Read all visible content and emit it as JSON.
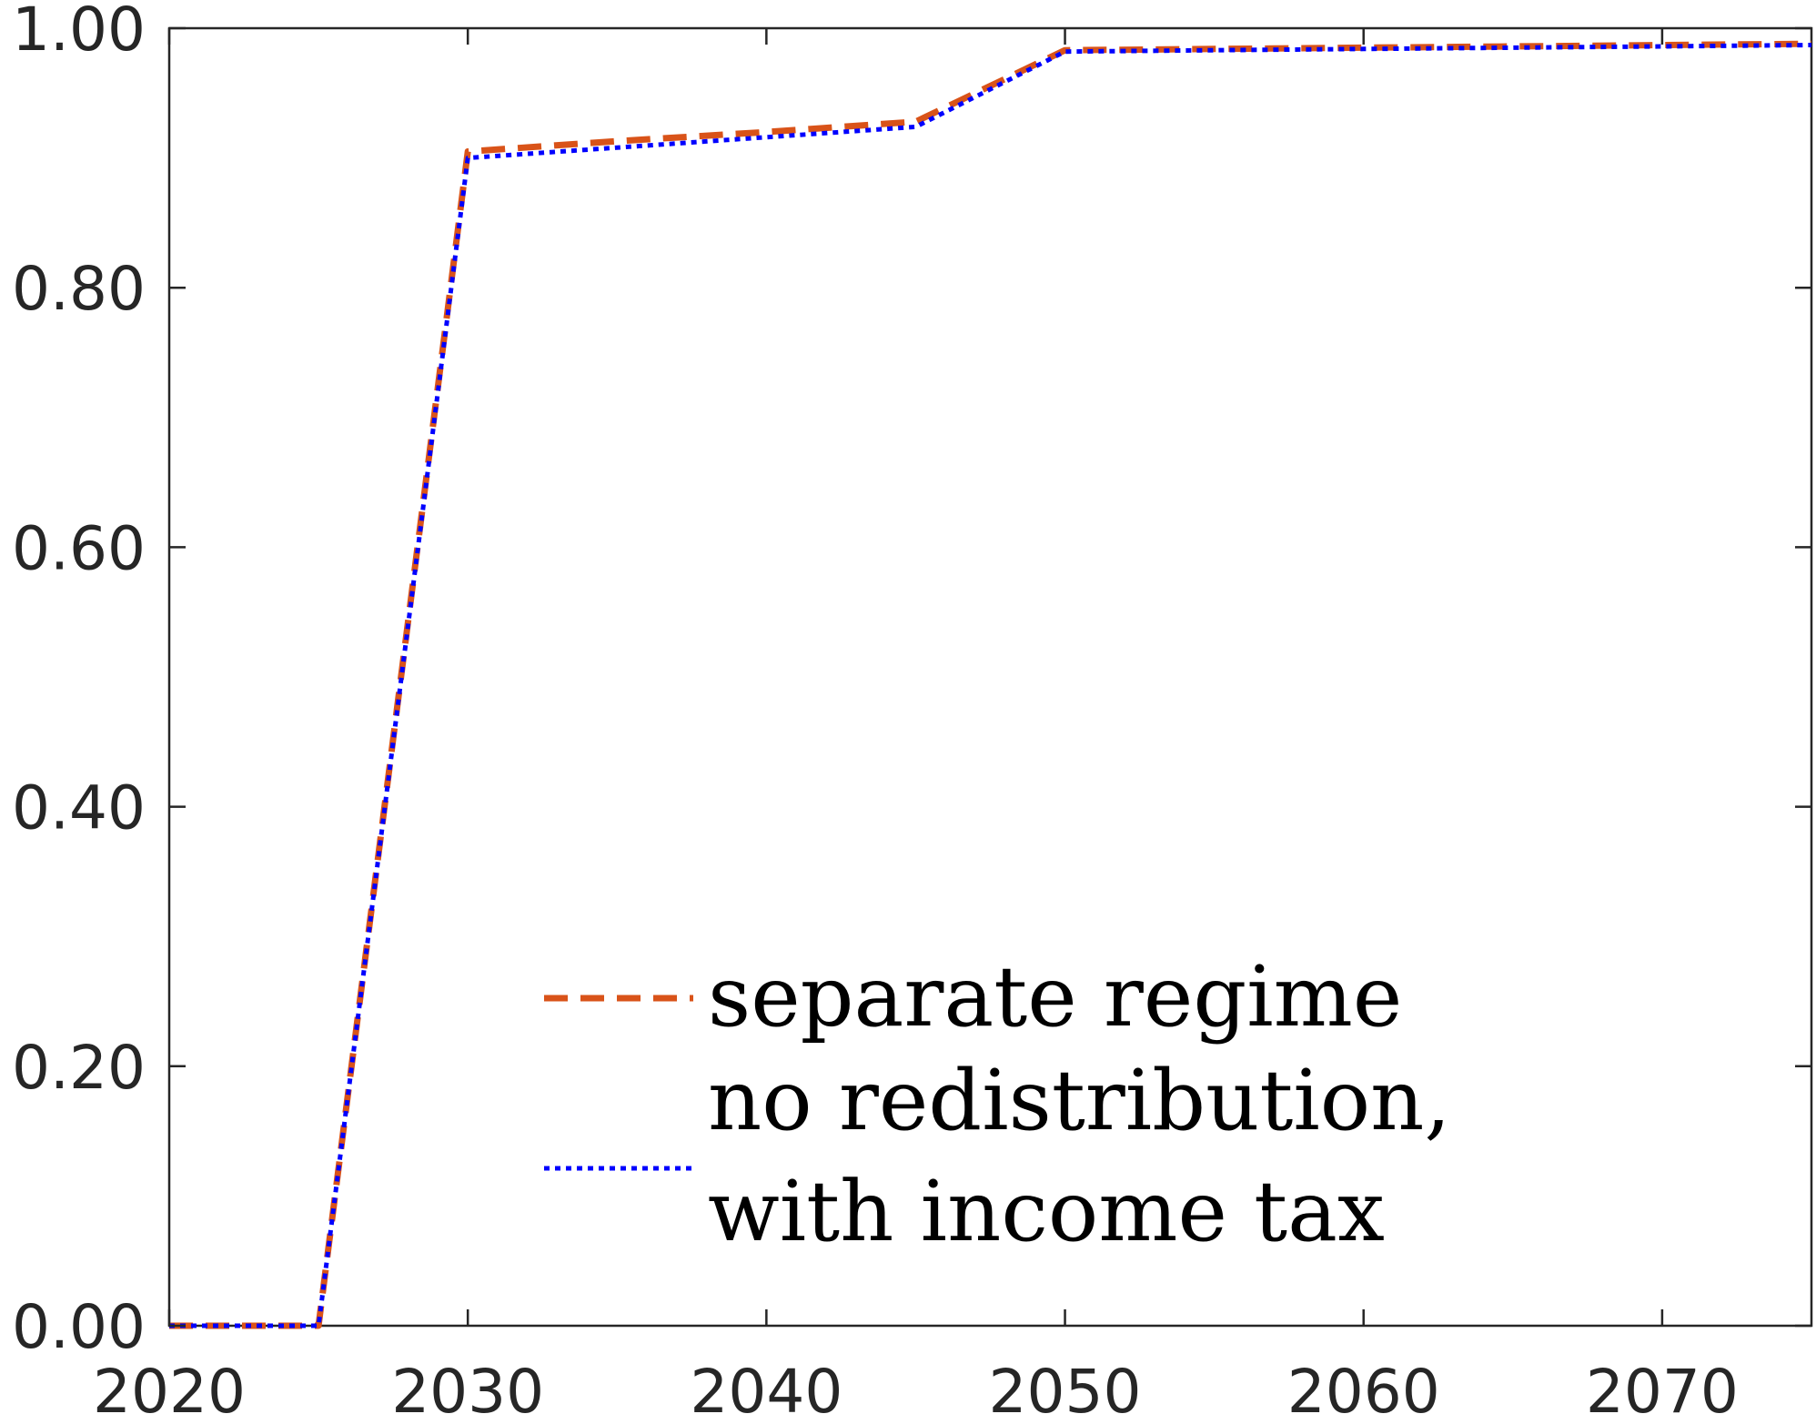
{
  "chart_data": {
    "type": "line",
    "title": "",
    "xlabel": "",
    "ylabel": "",
    "xlim": [
      2020,
      2075
    ],
    "ylim": [
      0,
      1
    ],
    "grid": false,
    "legend_position": "bottom-center",
    "x_ticks": [
      2020,
      2030,
      2040,
      2050,
      2060,
      2070
    ],
    "x_tick_labels": [
      "2020",
      "2030",
      "2040",
      "2050",
      "2060",
      "2070"
    ],
    "y_ticks": [
      0,
      0.2,
      0.4,
      0.6,
      0.8,
      1.0
    ],
    "y_tick_labels": [
      "0.00",
      "0.20",
      "0.40",
      "0.60",
      "0.80",
      "1.00"
    ],
    "series": [
      {
        "name": "separate regime",
        "style": "dashed",
        "color": "#D95319",
        "x": [
          2020,
          2025,
          2030,
          2035,
          2040,
          2045,
          2050,
          2055,
          2060,
          2065,
          2070,
          2075
        ],
        "y": [
          0.0,
          0.0,
          0.905,
          0.913,
          0.92,
          0.928,
          0.983,
          0.984,
          0.985,
          0.986,
          0.987,
          0.988
        ]
      },
      {
        "name_lines": [
          "no redistribution,",
          "with income tax"
        ],
        "style": "dotted",
        "color": "#0000FF",
        "x": [
          2020,
          2025,
          2030,
          2035,
          2040,
          2045,
          2050,
          2055,
          2060,
          2065,
          2070,
          2075
        ],
        "y": [
          0.0,
          0.0,
          0.9,
          0.908,
          0.916,
          0.924,
          0.982,
          0.983,
          0.984,
          0.985,
          0.986,
          0.987
        ]
      }
    ]
  }
}
